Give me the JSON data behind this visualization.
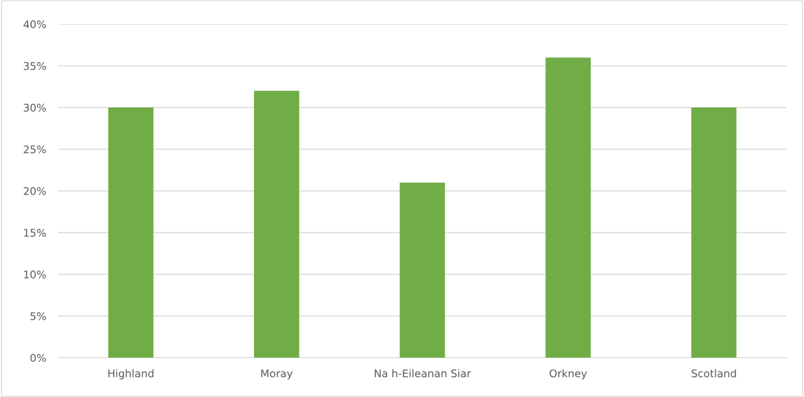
{
  "chart_data": {
    "type": "bar",
    "categories": [
      "Highland",
      "Moray",
      "Na h-Eileanan Siar",
      "Orkney",
      "Scotland"
    ],
    "values": [
      30,
      32,
      21,
      36,
      30
    ],
    "color": "#70ad47",
    "ylim": [
      0,
      40
    ],
    "yticks": [
      {
        "value": 0,
        "label": "0%"
      },
      {
        "value": 5,
        "label": "5%"
      },
      {
        "value": 10,
        "label": "10%"
      },
      {
        "value": 15,
        "label": "15%"
      },
      {
        "value": 20,
        "label": "20%"
      },
      {
        "value": 25,
        "label": "25%"
      },
      {
        "value": 30,
        "label": "30%"
      },
      {
        "value": 35,
        "label": "35%"
      },
      {
        "value": 40,
        "label": "40%"
      }
    ],
    "grid": "y"
  }
}
